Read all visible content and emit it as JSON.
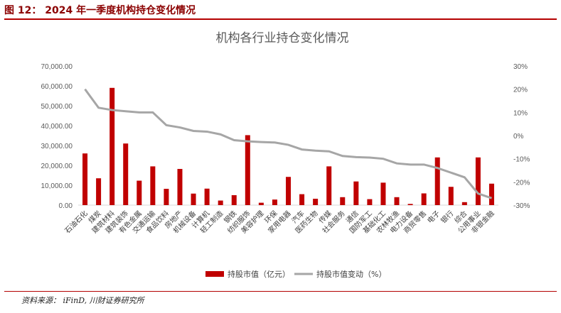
{
  "figure": {
    "title": "图 12： 2024 年一季度机构持仓变化情况",
    "source": "资料来源：  iFinD, 川财证券研究所"
  },
  "colors": {
    "bar": "#c00000",
    "line": "#a6a6a6",
    "accent": "#b40000"
  },
  "chart_data": {
    "type": "bar",
    "title": "机构各行业持仓变化情况",
    "categories": [
      "石油石化",
      "煤炭",
      "建筑材料",
      "建筑装饰",
      "有色金属",
      "交通运输",
      "食品饮料",
      "房地产",
      "机械设备",
      "计算机",
      "轻工制造",
      "钢铁",
      "纺织服饰",
      "美容护理",
      "环保",
      "家用电器",
      "汽车",
      "医药生物",
      "传媒",
      "社会服务",
      "通信",
      "国防军工",
      "基础化工",
      "农林牧渔",
      "电力设备",
      "商贸零售",
      "电子",
      "银行",
      "综合",
      "公用事业",
      "非银金融"
    ],
    "series": [
      {
        "name": "持股市值（亿元）",
        "type": "bar",
        "axis": "left",
        "values": [
          26000,
          13500,
          59000,
          31000,
          12300,
          19500,
          8200,
          18200,
          5800,
          8300,
          2300,
          5000,
          35200,
          1200,
          2800,
          14200,
          5500,
          3200,
          19500,
          4000,
          11900,
          3000,
          11300,
          4000,
          600,
          5900,
          24000,
          9200,
          1500,
          24000,
          10800
        ]
      },
      {
        "name": "持股市值变动（%）",
        "type": "line",
        "axis": "right",
        "values": [
          20,
          12,
          11,
          10.5,
          10,
          10,
          4.5,
          3.5,
          2,
          1.7,
          0.5,
          -2,
          -2.5,
          -2.8,
          -3,
          -4,
          -6,
          -6.5,
          -6.8,
          -8.8,
          -9.3,
          -9.5,
          -10,
          -12,
          -12.5,
          -12.5,
          -14,
          -16,
          -18,
          -25,
          -27
        ]
      }
    ],
    "y_left": {
      "min": 0,
      "max": 70000,
      "ticks": [
        "0.00",
        "10,000.00",
        "20,000.00",
        "30,000.00",
        "40,000.00",
        "50,000.00",
        "60,000.00",
        "70,000.00"
      ]
    },
    "y_right": {
      "min": -30,
      "max": 30,
      "ticks": [
        "-30%",
        "-20%",
        "-10%",
        "0%",
        "10%",
        "20%",
        "30%"
      ]
    },
    "legend_position": "bottom",
    "grid": false
  }
}
